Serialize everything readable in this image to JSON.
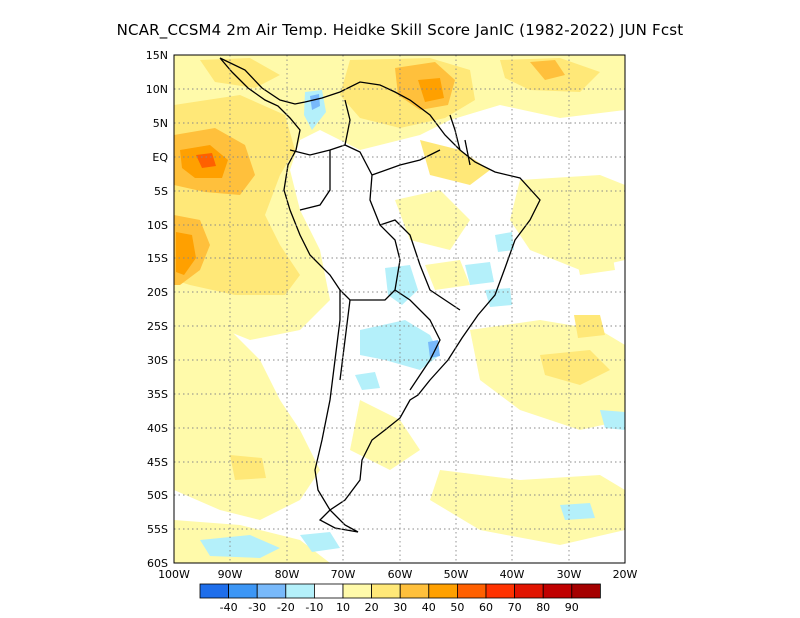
{
  "title": "NCAR_CCSM4  2m Air Temp. Heidke Skill Score JanIC (1982-2022) JUN Fcst",
  "latitude_labels": [
    "15N",
    "10N",
    "5N",
    "EQ",
    "5S",
    "10S",
    "15S",
    "20S",
    "25S",
    "30S",
    "35S",
    "40S",
    "45S",
    "50S",
    "55S",
    "60S"
  ],
  "longitude_labels": [
    "100W",
    "90W",
    "80W",
    "70W",
    "60W",
    "50W",
    "40W",
    "30W",
    "20W"
  ],
  "colorbar": {
    "colors": [
      "#1e6eeb",
      "#3c96f5",
      "#78b9fa",
      "#b4f0fa",
      "#ffffff",
      "#fffaaa",
      "#ffe878",
      "#ffc03c",
      "#ffa000",
      "#ff6000",
      "#ff3200",
      "#e11400",
      "#c00000",
      "#a50000"
    ],
    "labels": [
      "-40",
      "-30",
      "-20",
      "-10",
      "10",
      "20",
      "30",
      "40",
      "50",
      "60",
      "70",
      "80",
      "90"
    ]
  },
  "chart_data": {
    "type": "heatmap",
    "title": "NCAR_CCSM4  2m Air Temp. Heidke Skill Score JanIC (1982-2022) JUN Fcst",
    "region": "South America",
    "lon_range": [
      -100,
      -20
    ],
    "lat_range": [
      -60,
      15
    ],
    "grid": true,
    "contour_levels": [
      -40,
      -30,
      -20,
      -10,
      10,
      20,
      30,
      40,
      50,
      60,
      70,
      80,
      90
    ]
  }
}
